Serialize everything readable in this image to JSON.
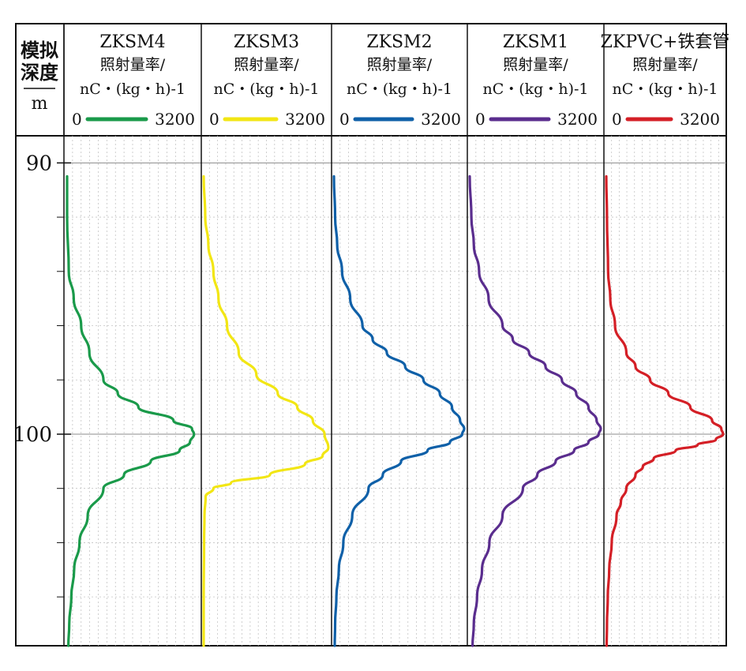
{
  "depth_header": {
    "line1": "模拟",
    "line2": "深度",
    "unit": "m"
  },
  "chart_data": {
    "type": "line",
    "ylim": [
      89,
      107.8
    ],
    "y_axis_ticks": [
      90,
      100
    ],
    "y_minor_step": 2,
    "xlim": [
      0,
      3200
    ],
    "grid": true,
    "panels": [
      {
        "name": "ZKSM4",
        "quantity": "照射量率/",
        "unit": "nC・(kg・h)-1",
        "x_min_label": "0",
        "x_max_label": "3200",
        "color": "#1a9a4a",
        "depth": [
          90.5,
          92,
          94,
          95,
          96,
          97,
          98,
          98.5,
          99,
          99.5,
          99.8,
          100,
          100.3,
          100.6,
          101,
          101.5,
          102,
          103,
          104,
          105,
          106,
          107,
          107.8
        ],
        "rate": [
          20,
          20,
          60,
          180,
          360,
          560,
          900,
          1250,
          1750,
          2600,
          3050,
          3100,
          3000,
          2750,
          2050,
          1400,
          900,
          520,
          320,
          190,
          120,
          70,
          50
        ]
      },
      {
        "name": "ZKSM3",
        "quantity": "照射量率/",
        "unit": "nC・(kg・h)-1",
        "x_min_label": "0",
        "x_max_label": "3200",
        "color": "#f2e614",
        "depth": [
          90.5,
          92,
          93,
          94,
          95,
          96,
          97,
          97.8,
          98.5,
          99,
          99.5,
          100,
          100.5,
          100.8,
          101.1,
          101.5,
          101.8,
          102,
          102.3,
          103,
          104,
          106,
          107.8
        ],
        "rate": [
          0,
          40,
          120,
          250,
          380,
          600,
          900,
          1350,
          1900,
          2400,
          2800,
          3100,
          3200,
          3050,
          2600,
          1700,
          700,
          250,
          50,
          20,
          10,
          0,
          0
        ]
      },
      {
        "name": "ZKSM2",
        "quantity": "照射量率/",
        "unit": "nC・(kg・h)-1",
        "x_min_label": "0",
        "x_max_label": "3200",
        "color": "#0f60a8",
        "depth": [
          90.5,
          92,
          93,
          94,
          95,
          96,
          96.5,
          97,
          97.5,
          98,
          98.5,
          99,
          99.5,
          99.8,
          100,
          100.3,
          100.6,
          101,
          101.5,
          102,
          103,
          104,
          105,
          106,
          107,
          107.8
        ],
        "rate": [
          0,
          30,
          80,
          200,
          400,
          700,
          950,
          1300,
          1750,
          2200,
          2600,
          2900,
          3100,
          3200,
          3150,
          2850,
          2300,
          1650,
          1200,
          850,
          450,
          230,
          120,
          60,
          30,
          20
        ]
      },
      {
        "name": "ZKSM1",
        "quantity": "照射量率/",
        "unit": "nC・(kg・h)-1",
        "x_min_label": "0",
        "x_max_label": "3200",
        "color": "#5a2d8e",
        "depth": [
          90.5,
          92,
          93,
          94,
          95,
          96,
          96.5,
          97,
          97.5,
          98,
          98.5,
          99,
          99.5,
          99.8,
          100,
          100.3,
          100.6,
          101,
          101.5,
          102,
          103,
          104,
          105,
          106,
          107,
          107.8
        ],
        "rate": [
          0,
          40,
          100,
          230,
          460,
          800,
          1050,
          1450,
          1850,
          2250,
          2600,
          2900,
          3100,
          3200,
          3150,
          2900,
          2550,
          2100,
          1650,
          1300,
          800,
          480,
          300,
          180,
          100,
          70
        ]
      },
      {
        "name": "ZKPVC+铁套管",
        "quantity": "照射量率/",
        "unit": "nC・(kg・h)-1",
        "x_min_label": "0",
        "x_max_label": "3200",
        "color": "#d41f26",
        "depth": [
          90.5,
          92,
          94,
          95,
          96,
          97,
          97.5,
          98,
          98.5,
          99,
          99.5,
          99.8,
          100,
          100.2,
          100.4,
          100.6,
          100.9,
          101.2,
          101.5,
          102,
          102.5,
          103,
          104,
          105,
          106,
          107,
          107.8
        ],
        "rate": [
          0,
          20,
          50,
          110,
          240,
          550,
          800,
          1200,
          1700,
          2300,
          2900,
          3150,
          3200,
          3000,
          2500,
          1900,
          1300,
          1000,
          800,
          550,
          400,
          280,
          150,
          80,
          40,
          20,
          10
        ]
      }
    ]
  }
}
